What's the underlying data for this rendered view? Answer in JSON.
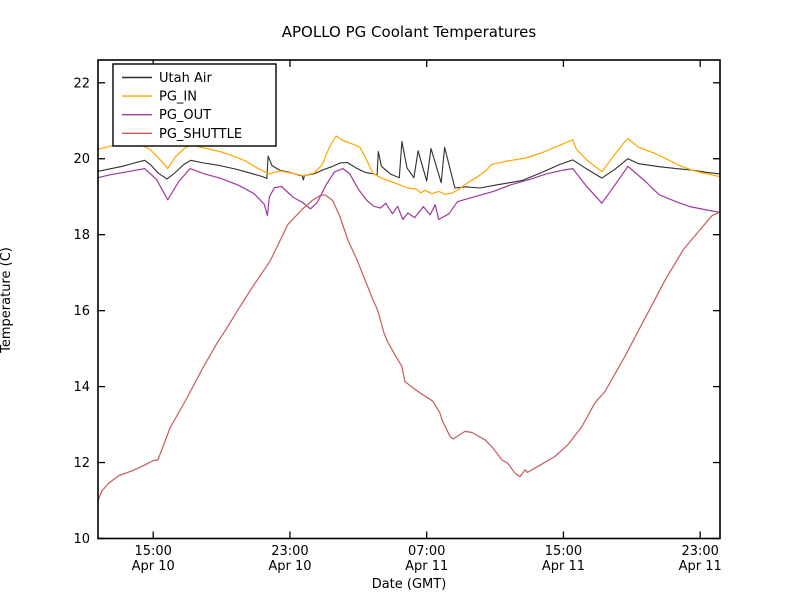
{
  "chart_data": {
    "type": "line",
    "title": "APOLLO PG Coolant Temperatures",
    "xlabel": "Date (GMT)",
    "ylabel": "Temperature (C)",
    "x_unit": "hours since Apr 10 00:00 GMT",
    "xlim": [
      11.77,
      48.16
    ],
    "ylim": [
      10,
      22.6
    ],
    "grid": false,
    "legend_position": "upper left",
    "frame_color": "#000000",
    "background_color": "#ffffff",
    "yticks": [
      10,
      12,
      14,
      16,
      18,
      20,
      22
    ],
    "xticks": [
      {
        "pos": 15,
        "time": "15:00",
        "date": "Apr 10"
      },
      {
        "pos": 23,
        "time": "23:00",
        "date": "Apr 10"
      },
      {
        "pos": 31,
        "time": "07:00",
        "date": "Apr 11"
      },
      {
        "pos": 39,
        "time": "15:00",
        "date": "Apr 11"
      },
      {
        "pos": 47,
        "time": "23:00",
        "date": "Apr 11"
      }
    ],
    "series": [
      {
        "name": "Utah Air",
        "color": "#2f2f2f",
        "width": 1.1,
        "points": [
          [
            11.77,
            19.67
          ],
          [
            12.3,
            19.72
          ],
          [
            13.2,
            19.8
          ],
          [
            14.0,
            19.9
          ],
          [
            14.5,
            19.96
          ],
          [
            14.9,
            19.82
          ],
          [
            15.3,
            19.62
          ],
          [
            15.8,
            19.47
          ],
          [
            16.2,
            19.6
          ],
          [
            16.8,
            19.85
          ],
          [
            17.2,
            19.96
          ],
          [
            17.8,
            19.9
          ],
          [
            18.9,
            19.82
          ],
          [
            19.8,
            19.73
          ],
          [
            20.7,
            19.62
          ],
          [
            21.4,
            19.53
          ],
          [
            21.65,
            19.48
          ],
          [
            21.72,
            20.07
          ],
          [
            21.95,
            19.82
          ],
          [
            22.4,
            19.7
          ],
          [
            23.0,
            19.64
          ],
          [
            23.5,
            19.57
          ],
          [
            23.72,
            19.55
          ],
          [
            23.78,
            19.44
          ],
          [
            23.85,
            19.56
          ],
          [
            24.4,
            19.6
          ],
          [
            24.9,
            19.7
          ],
          [
            25.5,
            19.8
          ],
          [
            25.95,
            19.89
          ],
          [
            26.35,
            19.9
          ],
          [
            26.9,
            19.75
          ],
          [
            27.4,
            19.64
          ],
          [
            27.9,
            19.6
          ],
          [
            28.1,
            19.57
          ],
          [
            28.17,
            20.19
          ],
          [
            28.35,
            19.8
          ],
          [
            28.9,
            19.59
          ],
          [
            29.4,
            19.5
          ],
          [
            29.55,
            20.45
          ],
          [
            29.85,
            19.76
          ],
          [
            30.25,
            19.5
          ],
          [
            30.5,
            20.21
          ],
          [
            31.0,
            19.41
          ],
          [
            31.25,
            20.27
          ],
          [
            31.85,
            19.37
          ],
          [
            32.05,
            20.3
          ],
          [
            32.65,
            19.23
          ],
          [
            33.3,
            19.26
          ],
          [
            34.1,
            19.23
          ],
          [
            35.2,
            19.32
          ],
          [
            36.6,
            19.43
          ],
          [
            37.8,
            19.65
          ],
          [
            38.8,
            19.85
          ],
          [
            39.55,
            19.97
          ],
          [
            40.4,
            19.72
          ],
          [
            41.25,
            19.49
          ],
          [
            42.0,
            19.72
          ],
          [
            42.77,
            20.0
          ],
          [
            43.4,
            19.87
          ],
          [
            44.6,
            19.79
          ],
          [
            45.6,
            19.74
          ],
          [
            46.5,
            19.7
          ],
          [
            47.4,
            19.64
          ],
          [
            48.16,
            19.6
          ]
        ]
      },
      {
        "name": "PG_IN",
        "color": "#ffa500",
        "width": 1.2,
        "points": [
          [
            11.77,
            20.25
          ],
          [
            12.5,
            20.33
          ],
          [
            13.3,
            20.38
          ],
          [
            14.2,
            20.38
          ],
          [
            14.8,
            20.25
          ],
          [
            15.45,
            19.95
          ],
          [
            15.85,
            19.74
          ],
          [
            16.3,
            20.05
          ],
          [
            16.9,
            20.3
          ],
          [
            17.3,
            20.35
          ],
          [
            18.0,
            20.28
          ],
          [
            18.9,
            20.19
          ],
          [
            19.7,
            20.07
          ],
          [
            20.4,
            19.94
          ],
          [
            21.1,
            19.75
          ],
          [
            21.75,
            19.6
          ],
          [
            22.4,
            19.68
          ],
          [
            23.1,
            19.62
          ],
          [
            23.8,
            19.55
          ],
          [
            24.4,
            19.62
          ],
          [
            24.9,
            19.85
          ],
          [
            25.3,
            20.3
          ],
          [
            25.7,
            20.6
          ],
          [
            26.1,
            20.48
          ],
          [
            26.7,
            20.38
          ],
          [
            27.1,
            20.3
          ],
          [
            27.5,
            19.95
          ],
          [
            27.85,
            19.62
          ],
          [
            28.3,
            19.5
          ],
          [
            28.9,
            19.4
          ],
          [
            29.5,
            19.3
          ],
          [
            29.9,
            19.23
          ],
          [
            30.4,
            19.2
          ],
          [
            30.65,
            19.1
          ],
          [
            30.9,
            19.17
          ],
          [
            31.3,
            19.08
          ],
          [
            31.7,
            19.14
          ],
          [
            32.1,
            19.06
          ],
          [
            32.5,
            19.1
          ],
          [
            32.9,
            19.2
          ],
          [
            33.4,
            19.37
          ],
          [
            33.9,
            19.5
          ],
          [
            34.5,
            19.7
          ],
          [
            34.8,
            19.85
          ],
          [
            35.6,
            19.93
          ],
          [
            36.8,
            20.02
          ],
          [
            37.7,
            20.15
          ],
          [
            38.5,
            20.3
          ],
          [
            39.3,
            20.45
          ],
          [
            39.55,
            20.5
          ],
          [
            39.75,
            20.25
          ],
          [
            40.4,
            19.95
          ],
          [
            41.25,
            19.66
          ],
          [
            41.9,
            20.05
          ],
          [
            42.5,
            20.4
          ],
          [
            42.77,
            20.53
          ],
          [
            43.4,
            20.3
          ],
          [
            44.3,
            20.15
          ],
          [
            45.0,
            20.0
          ],
          [
            45.7,
            19.84
          ],
          [
            46.5,
            19.7
          ],
          [
            47.2,
            19.62
          ],
          [
            48.16,
            19.53
          ]
        ]
      },
      {
        "name": "PG_OUT",
        "color": "#9e3a9e",
        "width": 1.2,
        "points": [
          [
            11.77,
            19.5
          ],
          [
            12.5,
            19.58
          ],
          [
            13.5,
            19.66
          ],
          [
            14.5,
            19.74
          ],
          [
            15.2,
            19.45
          ],
          [
            15.85,
            18.92
          ],
          [
            16.5,
            19.4
          ],
          [
            17.15,
            19.74
          ],
          [
            18.0,
            19.6
          ],
          [
            18.9,
            19.49
          ],
          [
            20.0,
            19.3
          ],
          [
            20.9,
            19.08
          ],
          [
            21.5,
            18.8
          ],
          [
            21.68,
            18.5
          ],
          [
            21.8,
            19.0
          ],
          [
            22.1,
            19.24
          ],
          [
            22.5,
            19.27
          ],
          [
            23.2,
            18.98
          ],
          [
            23.7,
            18.86
          ],
          [
            24.2,
            18.68
          ],
          [
            24.6,
            18.85
          ],
          [
            25.1,
            19.3
          ],
          [
            25.6,
            19.65
          ],
          [
            26.1,
            19.74
          ],
          [
            26.5,
            19.6
          ],
          [
            27.0,
            19.2
          ],
          [
            27.5,
            18.9
          ],
          [
            27.9,
            18.75
          ],
          [
            28.3,
            18.7
          ],
          [
            28.6,
            18.83
          ],
          [
            29.0,
            18.55
          ],
          [
            29.3,
            18.75
          ],
          [
            29.6,
            18.4
          ],
          [
            29.9,
            18.57
          ],
          [
            30.3,
            18.45
          ],
          [
            30.8,
            18.74
          ],
          [
            31.2,
            18.52
          ],
          [
            31.5,
            18.79
          ],
          [
            31.7,
            18.4
          ],
          [
            32.3,
            18.55
          ],
          [
            32.8,
            18.87
          ],
          [
            33.5,
            18.96
          ],
          [
            34.2,
            19.05
          ],
          [
            34.9,
            19.14
          ],
          [
            35.9,
            19.31
          ],
          [
            37.0,
            19.45
          ],
          [
            38.0,
            19.6
          ],
          [
            39.0,
            19.7
          ],
          [
            39.55,
            19.74
          ],
          [
            40.3,
            19.3
          ],
          [
            41.25,
            18.83
          ],
          [
            42.0,
            19.3
          ],
          [
            42.77,
            19.8
          ],
          [
            43.8,
            19.4
          ],
          [
            44.6,
            19.05
          ],
          [
            45.7,
            18.85
          ],
          [
            46.4,
            18.74
          ],
          [
            47.5,
            18.64
          ],
          [
            48.16,
            18.59
          ]
        ]
      },
      {
        "name": "PG_SHUTTLE",
        "color": "#c45c5c",
        "width": 1.2,
        "points": [
          [
            11.77,
            11.0
          ],
          [
            12.0,
            11.25
          ],
          [
            12.4,
            11.46
          ],
          [
            13.0,
            11.66
          ],
          [
            13.75,
            11.78
          ],
          [
            14.35,
            11.9
          ],
          [
            15.0,
            12.05
          ],
          [
            15.27,
            12.07
          ],
          [
            15.6,
            12.45
          ],
          [
            15.98,
            12.91
          ],
          [
            16.97,
            13.7
          ],
          [
            17.9,
            14.49
          ],
          [
            18.79,
            15.19
          ],
          [
            19.2,
            15.46
          ],
          [
            19.9,
            15.98
          ],
          [
            20.83,
            16.64
          ],
          [
            21.83,
            17.3
          ],
          [
            22.88,
            18.27
          ],
          [
            23.05,
            18.35
          ],
          [
            23.7,
            18.66
          ],
          [
            24.3,
            18.9
          ],
          [
            24.75,
            19.03
          ],
          [
            25.05,
            19.05
          ],
          [
            25.5,
            18.9
          ],
          [
            25.92,
            18.48
          ],
          [
            26.39,
            17.86
          ],
          [
            26.92,
            17.34
          ],
          [
            27.39,
            16.81
          ],
          [
            27.86,
            16.28
          ],
          [
            27.97,
            16.18
          ],
          [
            28.15,
            15.98
          ],
          [
            28.5,
            15.41
          ],
          [
            28.7,
            15.19
          ],
          [
            29.14,
            14.84
          ],
          [
            29.55,
            14.53
          ],
          [
            29.73,
            14.13
          ],
          [
            30.49,
            13.87
          ],
          [
            31.07,
            13.7
          ],
          [
            31.37,
            13.61
          ],
          [
            31.78,
            13.3
          ],
          [
            31.89,
            13.13
          ],
          [
            32.36,
            12.69
          ],
          [
            32.54,
            12.62
          ],
          [
            33.24,
            12.82
          ],
          [
            33.65,
            12.79
          ],
          [
            34.41,
            12.6
          ],
          [
            34.88,
            12.38
          ],
          [
            35.4,
            12.07
          ],
          [
            35.75,
            11.98
          ],
          [
            36.16,
            11.72
          ],
          [
            36.46,
            11.63
          ],
          [
            36.75,
            11.81
          ],
          [
            36.9,
            11.74
          ],
          [
            37.51,
            11.9
          ],
          [
            38.5,
            12.16
          ],
          [
            39.26,
            12.47
          ],
          [
            40.08,
            12.95
          ],
          [
            40.84,
            13.57
          ],
          [
            41.43,
            13.87
          ],
          [
            42.6,
            14.8
          ],
          [
            43.77,
            15.8
          ],
          [
            44.94,
            16.8
          ],
          [
            46.0,
            17.6
          ],
          [
            46.99,
            18.13
          ],
          [
            47.69,
            18.5
          ],
          [
            48.16,
            18.6
          ]
        ]
      }
    ]
  }
}
